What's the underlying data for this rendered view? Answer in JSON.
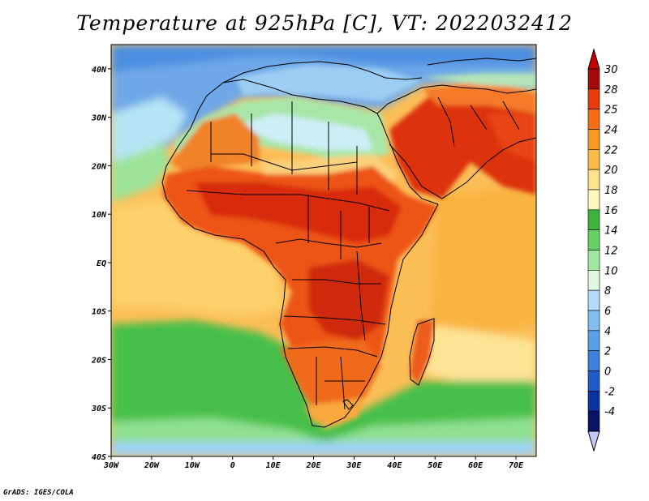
{
  "title": "Temperature at 925hPa [C], VT: 2022032412",
  "credit": "GrADS: IGES/COLA",
  "map": {
    "lon_range": [
      -30,
      75
    ],
    "lat_range": [
      -40,
      45
    ],
    "lat_ticks": [
      {
        "value": 40,
        "label": "40N"
      },
      {
        "value": 30,
        "label": "30N"
      },
      {
        "value": 20,
        "label": "20N"
      },
      {
        "value": 10,
        "label": "10N"
      },
      {
        "value": 0,
        "label": "EQ"
      },
      {
        "value": -10,
        "label": "10S"
      },
      {
        "value": -20,
        "label": "20S"
      },
      {
        "value": -30,
        "label": "30S"
      },
      {
        "value": -40,
        "label": "40S"
      }
    ],
    "lon_ticks": [
      {
        "value": -30,
        "label": "30W"
      },
      {
        "value": -20,
        "label": "20W"
      },
      {
        "value": -10,
        "label": "10W"
      },
      {
        "value": 0,
        "label": "0"
      },
      {
        "value": 10,
        "label": "10E"
      },
      {
        "value": 20,
        "label": "20E"
      },
      {
        "value": 30,
        "label": "30E"
      },
      {
        "value": 40,
        "label": "40E"
      },
      {
        "value": 50,
        "label": "50E"
      },
      {
        "value": 60,
        "label": "60E"
      },
      {
        "value": 70,
        "label": "70E"
      }
    ]
  },
  "colorbar": {
    "levels": [
      {
        "label": "30",
        "color": "#a50a0a"
      },
      {
        "label": "28",
        "color": "#e63c0a"
      },
      {
        "label": "25",
        "color": "#f56e14"
      },
      {
        "label": "24",
        "color": "#f99823"
      },
      {
        "label": "22",
        "color": "#fbbb4a"
      },
      {
        "label": "20",
        "color": "#fde28c"
      },
      {
        "label": "18",
        "color": "#fdf8bf"
      },
      {
        "label": "16",
        "color": "#3cb43c"
      },
      {
        "label": "14",
        "color": "#64d264"
      },
      {
        "label": "12",
        "color": "#a0e8a0"
      },
      {
        "label": "10",
        "color": "#e0f8e0"
      },
      {
        "label": "8",
        "color": "#b4dcf8"
      },
      {
        "label": "6",
        "color": "#82bef0"
      },
      {
        "label": "4",
        "color": "#5aa0e6"
      },
      {
        "label": "2",
        "color": "#3c82dc"
      },
      {
        "label": "0",
        "color": "#1e5ac8"
      },
      {
        "label": "-2",
        "color": "#0a32a0"
      },
      {
        "label": "-4",
        "color": "#0a1464"
      }
    ],
    "top_color": "#c80000",
    "bottom_color": "#c8c8f8"
  }
}
